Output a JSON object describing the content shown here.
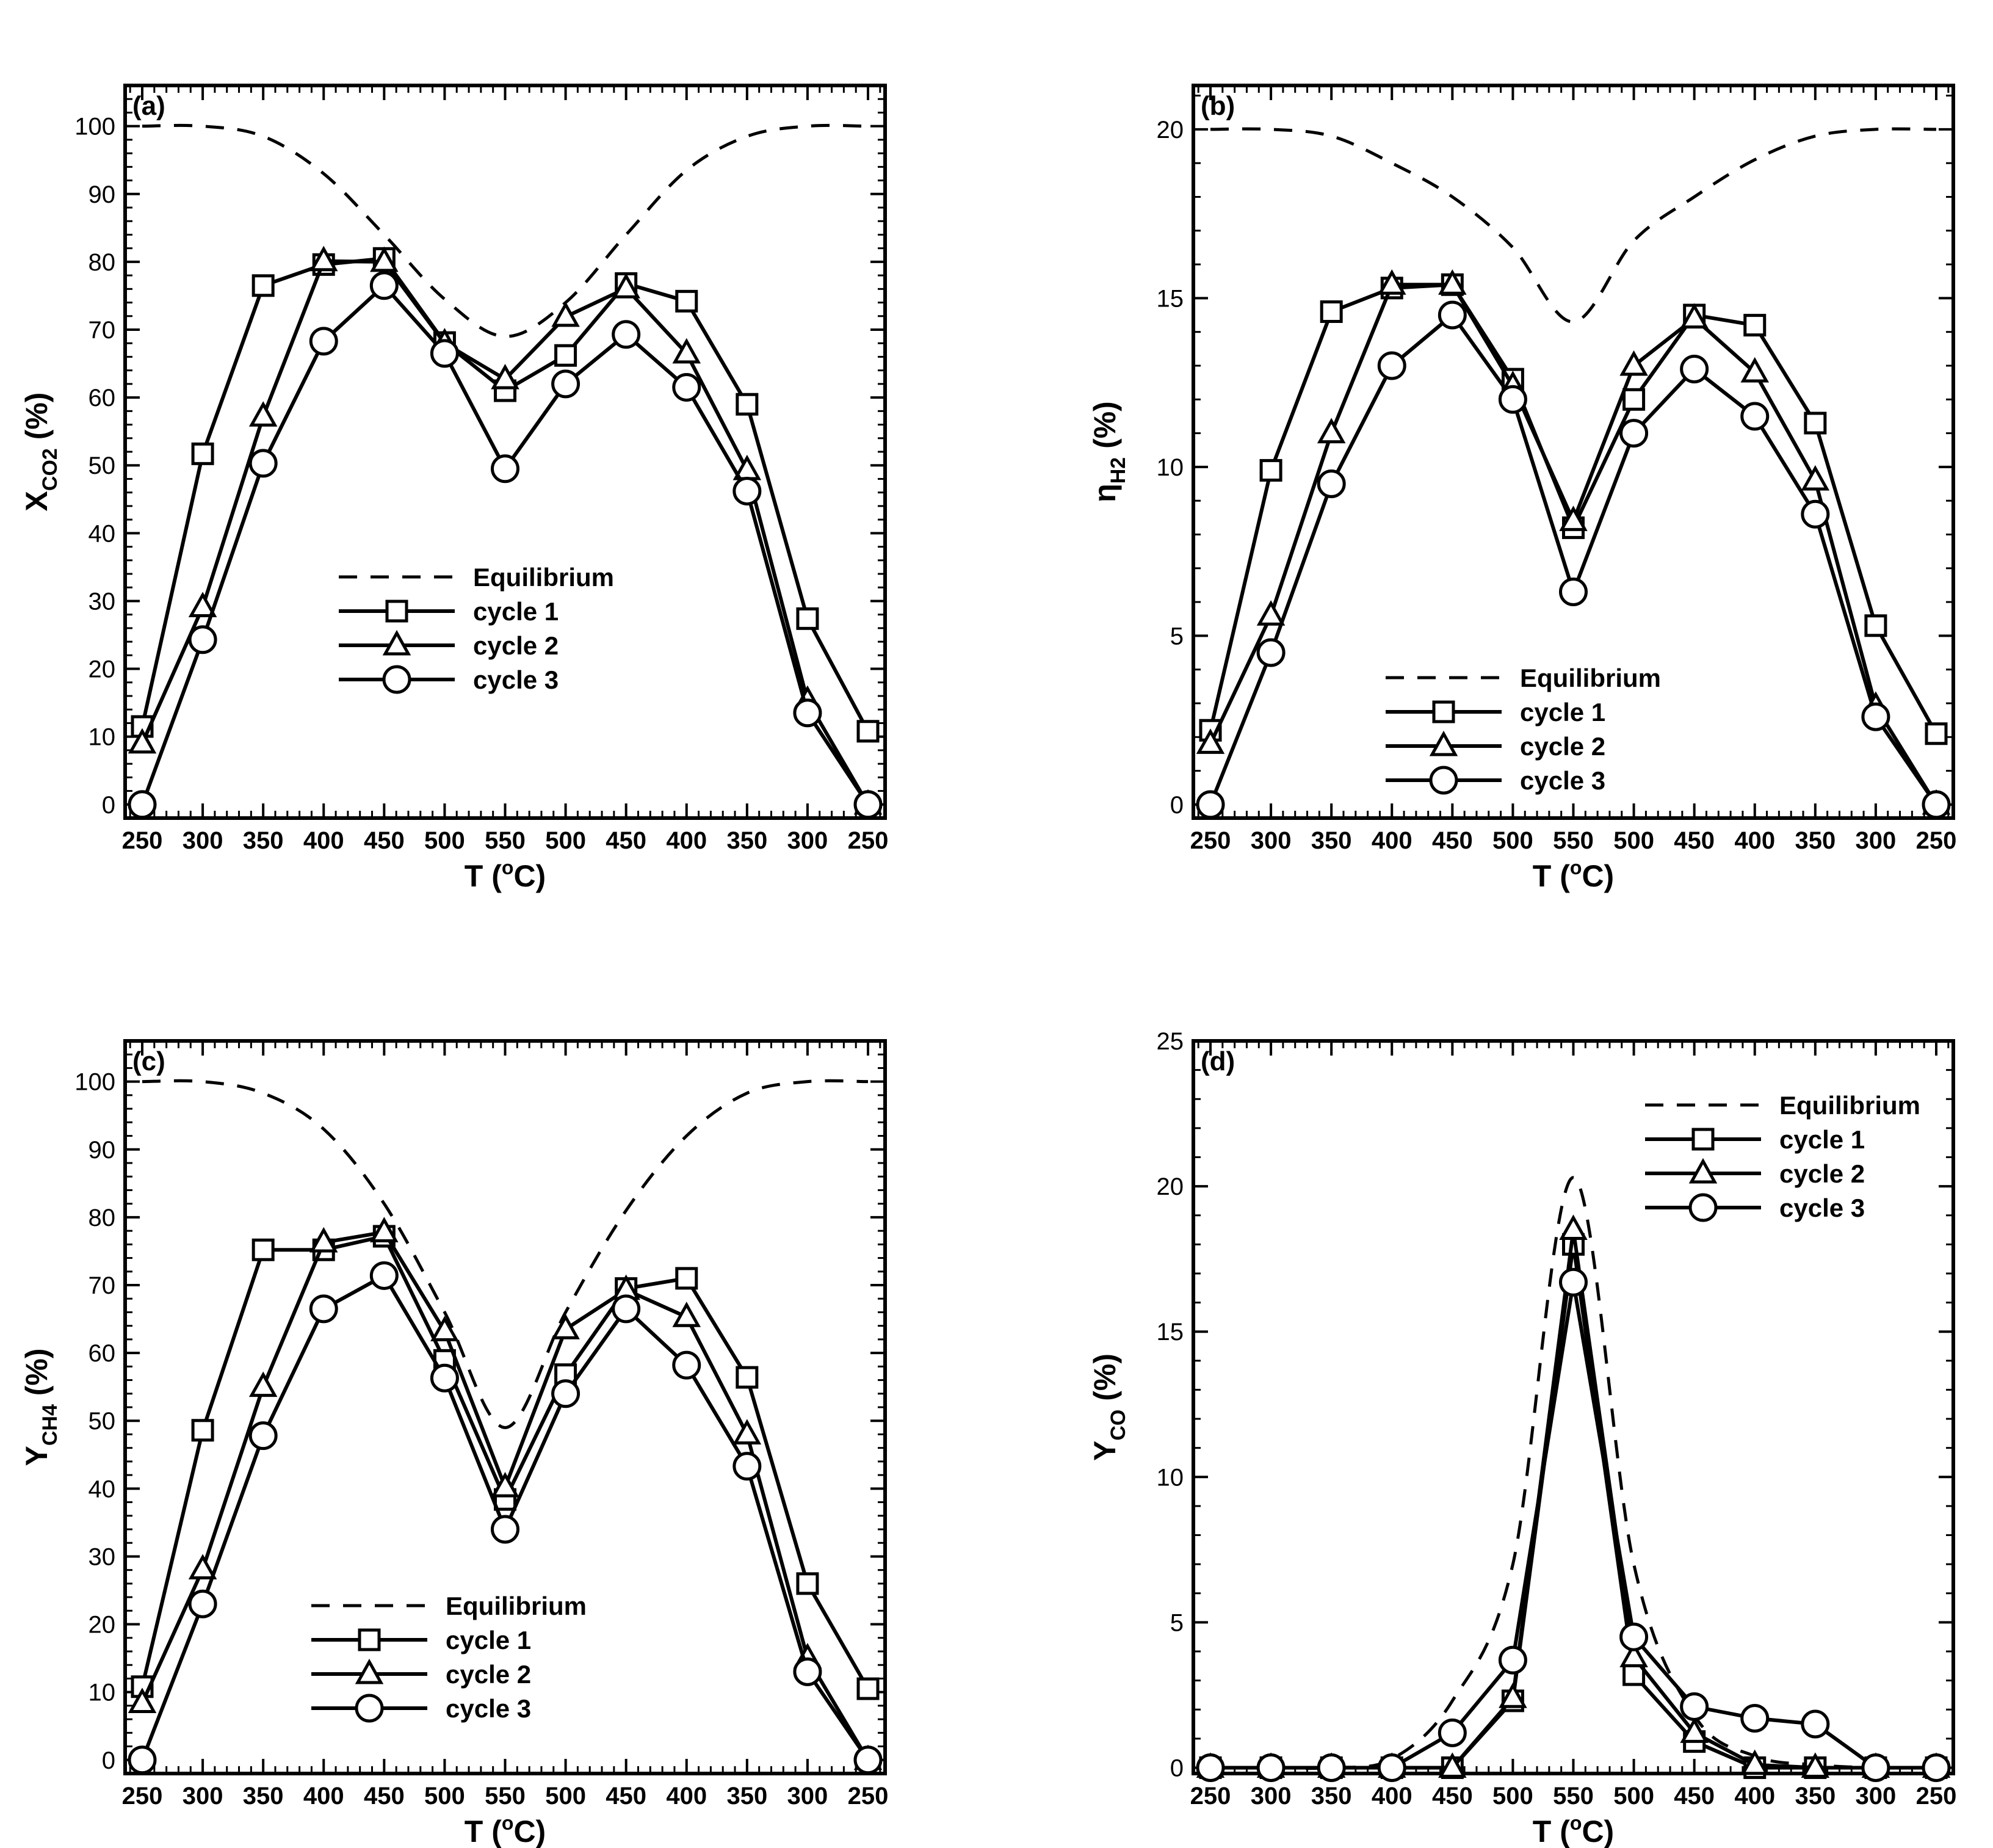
{
  "chart_data": [
    {
      "type": "line",
      "panel_label": "(a)",
      "ylabel_main": "X",
      "ylabel_sub": "CO2",
      "ylabel_unit": "(%)",
      "xlabel_main": "T (",
      "xlabel_sup": "o",
      "xlabel_end": "C)",
      "categories": [
        "250",
        "300",
        "350",
        "400",
        "450",
        "500",
        "550",
        "500",
        "450",
        "400",
        "350",
        "300",
        "250"
      ],
      "ylim": [
        -2,
        106
      ],
      "yticks": [
        0,
        10,
        20,
        30,
        40,
        50,
        60,
        70,
        80,
        90,
        100
      ],
      "legend_position": "center",
      "series": [
        {
          "name": "Equilibrium",
          "values": [
            100,
            100,
            98.5,
            93,
            84,
            74.5,
            69,
            74,
            84,
            93.5,
            98.5,
            100,
            100
          ]
        },
        {
          "name": "cycle 1",
          "values": [
            11.5,
            51.7,
            76.5,
            79.6,
            80.5,
            68.1,
            61,
            66.2,
            76.8,
            74.2,
            59,
            27.4,
            10.8
          ]
        },
        {
          "name": "cycle 2",
          "values": [
            9,
            29.1,
            57.2,
            80.1,
            80,
            68,
            62.7,
            71.9,
            76.1,
            66.5,
            49.3,
            15.3,
            0
          ]
        },
        {
          "name": "cycle 3",
          "values": [
            0,
            24.3,
            50.3,
            68.3,
            76.5,
            66.5,
            49.5,
            62,
            69.3,
            61.5,
            46.2,
            13.5,
            0
          ]
        }
      ]
    },
    {
      "type": "line",
      "panel_label": "(b)",
      "ylabel_main": "η",
      "ylabel_sub": "H2",
      "ylabel_unit": "(%)",
      "xlabel_main": "T (",
      "xlabel_sup": "o",
      "xlabel_end": "C)",
      "categories": [
        "250",
        "300",
        "350",
        "400",
        "450",
        "500",
        "550",
        "500",
        "450",
        "400",
        "350",
        "300",
        "250"
      ],
      "ylim": [
        -0.4,
        21.3
      ],
      "yticks": [
        0,
        5,
        10,
        15,
        20
      ],
      "legend_position": "lower-center",
      "series": [
        {
          "name": "Equilibrium",
          "values": [
            20,
            20,
            19.8,
            19,
            18,
            16.5,
            14.3,
            16.7,
            18,
            19.1,
            19.8,
            20,
            20
          ]
        },
        {
          "name": "cycle 1",
          "values": [
            2.2,
            9.9,
            14.6,
            15.3,
            15.4,
            12.6,
            8.2,
            12,
            14.5,
            14.2,
            11.3,
            5.3,
            2.1
          ]
        },
        {
          "name": "cycle 2",
          "values": [
            1.8,
            5.6,
            11,
            15.4,
            15.4,
            12.4,
            8.4,
            13,
            14.4,
            12.8,
            9.6,
            2.9,
            0
          ]
        },
        {
          "name": "cycle 3",
          "values": [
            0,
            4.5,
            9.5,
            13,
            14.5,
            12,
            6.3,
            11,
            12.9,
            11.5,
            8.6,
            2.6,
            0
          ]
        }
      ]
    },
    {
      "type": "line",
      "panel_label": "(c)",
      "ylabel_main": "Y",
      "ylabel_sub": "CH4",
      "ylabel_unit": "(%)",
      "xlabel_main": "T (",
      "xlabel_sup": "o",
      "xlabel_end": "C)",
      "categories": [
        "250",
        "300",
        "350",
        "400",
        "450",
        "500",
        "550",
        "500",
        "450",
        "400",
        "350",
        "300",
        "250"
      ],
      "ylim": [
        -2,
        106
      ],
      "yticks": [
        0,
        10,
        20,
        30,
        40,
        50,
        60,
        70,
        80,
        90,
        100
      ],
      "legend_position": "lower-center",
      "series": [
        {
          "name": "Equilibrium",
          "values": [
            100,
            100,
            98.3,
            93,
            82,
            66,
            49,
            66,
            81,
            92,
            98.3,
            100,
            100
          ]
        },
        {
          "name": "cycle 1",
          "values": [
            10.8,
            48.6,
            75.2,
            75.2,
            77.2,
            58.9,
            38.4,
            56.8,
            69.5,
            71,
            56.4,
            26,
            10.5
          ]
        },
        {
          "name": "cycle 2",
          "values": [
            8.4,
            28.1,
            55,
            76.3,
            77.8,
            63.2,
            40.2,
            63.5,
            69.3,
            65.3,
            48,
            15,
            0
          ]
        },
        {
          "name": "cycle 3",
          "values": [
            0,
            23,
            47.8,
            66.5,
            71.4,
            56.3,
            34,
            54,
            66.5,
            58.2,
            43.3,
            13,
            0
          ]
        }
      ]
    },
    {
      "type": "line",
      "panel_label": "(d)",
      "ylabel_main": "Y",
      "ylabel_sub": "CO",
      "ylabel_unit": "(%)",
      "xlabel_main": "T (",
      "xlabel_sup": "o",
      "xlabel_end": "C)",
      "categories": [
        "250",
        "300",
        "350",
        "400",
        "450",
        "500",
        "550",
        "500",
        "450",
        "400",
        "350",
        "300",
        "250"
      ],
      "ylim": [
        -0.2,
        25
      ],
      "yticks": [
        0,
        5,
        10,
        15,
        20,
        25
      ],
      "legend_position": "top-right",
      "series": [
        {
          "name": "Equilibrium",
          "values": [
            0,
            0,
            0,
            0.3,
            2.3,
            7,
            20.3,
            7,
            1.8,
            0.4,
            0.1,
            0,
            0
          ]
        },
        {
          "name": "cycle 1",
          "values": [
            0,
            0,
            0,
            0,
            0,
            2.3,
            18,
            3.2,
            0.9,
            0,
            0,
            0,
            0
          ]
        },
        {
          "name": "cycle 2",
          "values": [
            0,
            0,
            0,
            0,
            0,
            2.4,
            18.5,
            3.8,
            1.2,
            0.1,
            0,
            0,
            0
          ]
        },
        {
          "name": "cycle 3",
          "values": [
            0,
            0,
            0,
            0,
            1.2,
            3.7,
            16.7,
            4.5,
            2.1,
            1.7,
            1.5,
            0,
            0
          ]
        }
      ]
    }
  ]
}
